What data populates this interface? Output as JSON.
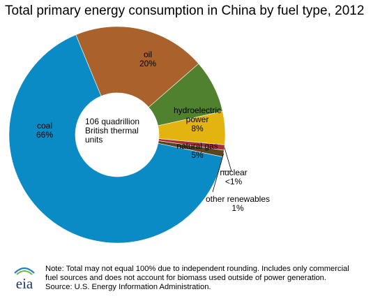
{
  "chart_data": {
    "type": "pie",
    "subtype": "donut",
    "title": "Total primary energy consumption in China by fuel type, 2012",
    "center_label": [
      "106 quadrillion",
      "British thermal",
      "units"
    ],
    "categories": [
      "oil",
      "hydroelectric power",
      "natural gas",
      "nuclear",
      "other renewables",
      "coal"
    ],
    "values": [
      20,
      8,
      5,
      0.8,
      1,
      66
    ],
    "labels": [
      {
        "name": "oil",
        "lines": [
          "oil",
          "20%"
        ]
      },
      {
        "name": "hydroelectric",
        "lines": [
          "hydroelectric",
          "power",
          "8%"
        ]
      },
      {
        "name": "natural-gas",
        "lines": [
          "natural gas",
          "5%"
        ]
      },
      {
        "name": "nuclear",
        "lines": [
          "nuclear",
          "<1%"
        ]
      },
      {
        "name": "other-renewables",
        "lines": [
          "other renewables",
          "1%"
        ]
      },
      {
        "name": "coal",
        "lines": [
          "coal",
          "66%"
        ]
      }
    ],
    "colors": [
      "#a9622b",
      "#4f812f",
      "#e3b30f",
      "#a5313a",
      "#5a451f",
      "#0a8bc6"
    ],
    "legend": "none"
  },
  "footer": {
    "logo_text": "eia",
    "note_lines": [
      "Note: Total may not equal 100% due to independent rounding. Includes only commercial",
      "fuel sources and does not account for biomass used outside of power generation.",
      "Source: U.S. Energy Information Administration."
    ]
  }
}
